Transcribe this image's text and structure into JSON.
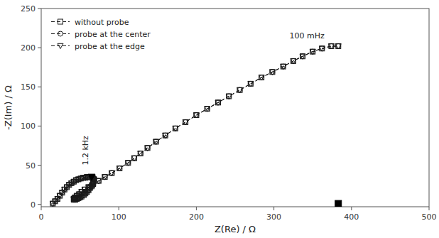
{
  "chart_data": {
    "type": "line",
    "xlabel": "Z(Re) / Ω",
    "ylabel": "-Z(Im) / Ω",
    "xlim": [
      0,
      500
    ],
    "ylim": [
      -3,
      250
    ],
    "xticks": [
      0,
      100,
      200,
      300,
      400,
      500
    ],
    "yticks": [
      0,
      50,
      100,
      150,
      200,
      250
    ],
    "grid": false,
    "legend": "upper left",
    "x": [
      15,
      18,
      21,
      24,
      27,
      30,
      33,
      36,
      39,
      42,
      45,
      48,
      51,
      54,
      57,
      59,
      61,
      63,
      65,
      66,
      67,
      68,
      68,
      67,
      67,
      66,
      65,
      63,
      61,
      59,
      57,
      55,
      52,
      50,
      48,
      46,
      44,
      43,
      42,
      42,
      43,
      44,
      46,
      49,
      52,
      56,
      61,
      67,
      74,
      82,
      91,
      101,
      112,
      120,
      128,
      137,
      148,
      160,
      173,
      186,
      200,
      214,
      228,
      242,
      256,
      270,
      284,
      298,
      312,
      325,
      337,
      350,
      362,
      374,
      383
    ],
    "series": [
      {
        "name": "without probe",
        "color": "#1a1a1a",
        "marker": "square",
        "line_style": "dashed",
        "values": [
          1,
          4,
          7,
          11,
          15,
          19,
          22,
          25,
          27,
          29,
          31,
          32,
          33,
          34,
          34,
          35,
          35,
          35,
          35,
          34,
          33,
          32,
          31,
          29,
          27,
          25,
          23,
          21,
          18,
          16,
          14,
          12,
          10,
          9,
          8,
          7,
          6,
          6,
          6,
          7,
          8,
          9,
          11,
          13,
          16,
          19,
          22,
          26,
          30,
          35,
          40,
          46,
          53,
          59,
          65,
          72,
          80,
          88,
          97,
          105,
          114,
          122,
          130,
          138,
          146,
          154,
          162,
          169,
          176,
          183,
          189,
          195,
          199,
          202,
          202
        ]
      },
      {
        "name": "probe at the center",
        "color": "#1a1a1a",
        "marker": "circle",
        "line_style": "dashed",
        "values": [
          1,
          4,
          7,
          11,
          15,
          19,
          22,
          25,
          27,
          29,
          31,
          32,
          33,
          34,
          34,
          35,
          35,
          35,
          35,
          34,
          33,
          32,
          31,
          29,
          27,
          25,
          23,
          21,
          18,
          16,
          14,
          12,
          10,
          9,
          8,
          7,
          6,
          6,
          6,
          7,
          8,
          9,
          11,
          13,
          16,
          19,
          22,
          26,
          30,
          35,
          40,
          46,
          53,
          59,
          65,
          72,
          80,
          88,
          97,
          105,
          114,
          122,
          130,
          138,
          146,
          154,
          162,
          169,
          176,
          183,
          189,
          195,
          199,
          202,
          202
        ]
      },
      {
        "name": "probe at the edge",
        "color": "#1a1a1a",
        "marker": "triangle-down",
        "line_style": "dashed",
        "values": [
          1,
          4,
          7,
          11,
          15,
          19,
          22,
          25,
          27,
          29,
          31,
          32,
          33,
          34,
          34,
          35,
          35,
          35,
          35,
          34,
          33,
          32,
          31,
          29,
          27,
          25,
          23,
          21,
          18,
          16,
          14,
          12,
          10,
          9,
          8,
          7,
          6,
          6,
          6,
          7,
          8,
          9,
          11,
          13,
          16,
          19,
          22,
          26,
          30,
          35,
          40,
          46,
          53,
          59,
          65,
          72,
          80,
          88,
          97,
          105,
          114,
          122,
          130,
          138,
          146,
          154,
          162,
          169,
          176,
          183,
          189,
          195,
          199,
          202,
          202
        ]
      }
    ],
    "markers": [
      {
        "x": 65,
        "y": 35,
        "marker": "triangle-down",
        "color": "#000000"
      },
      {
        "x": 383,
        "y": 1,
        "marker": "square",
        "color": "#000000"
      }
    ],
    "annotations": [
      {
        "text": "1.2 kHz",
        "x": 58,
        "y": 50
      },
      {
        "text": "100 mHz",
        "x": 320,
        "y": 212
      }
    ]
  }
}
